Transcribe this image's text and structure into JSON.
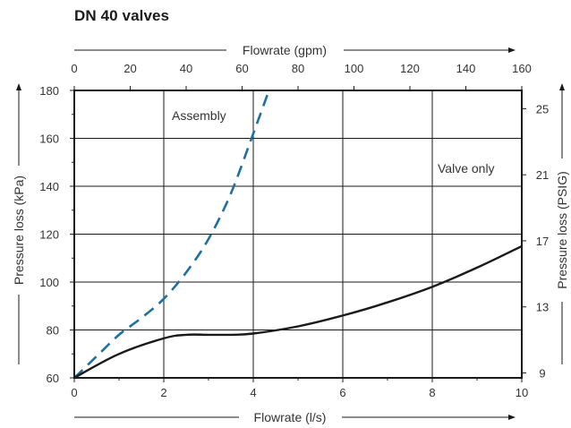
{
  "chart_data": {
    "type": "line",
    "title": "DN 40 valves",
    "x_bottom": {
      "label": "Flowrate (l/s)",
      "range": [
        0,
        10
      ],
      "ticks": [
        0,
        2,
        4,
        6,
        8,
        10
      ]
    },
    "x_top": {
      "label": "Flowrate (gpm)",
      "range": [
        0,
        160
      ],
      "ticks": [
        0,
        20,
        40,
        60,
        80,
        100,
        120,
        140,
        160
      ]
    },
    "y_left": {
      "label": "Pressure loss (kPa)",
      "range": [
        60,
        180
      ],
      "ticks": [
        60,
        80,
        100,
        120,
        140,
        160,
        180
      ]
    },
    "y_right": {
      "label": "Pressure loss (PSIG)",
      "ticks": [
        9,
        13,
        17,
        21,
        25
      ]
    },
    "grid": true,
    "series": [
      {
        "name": "Assembly",
        "style": "dashed",
        "color": "#1f6f9f",
        "x": [
          0,
          0.5,
          1,
          1.5,
          2,
          2.5,
          3,
          3.5,
          4,
          4.35
        ],
        "y": [
          60,
          69,
          78,
          85,
          93,
          104,
          118,
          137,
          162,
          180
        ]
      },
      {
        "name": "Valve only",
        "style": "solid",
        "color": "#1a1a1a",
        "x": [
          0,
          1,
          2,
          2.5,
          3,
          3.5,
          4,
          5,
          6,
          7,
          8,
          9,
          10
        ],
        "y": [
          60,
          70,
          76.5,
          78,
          78,
          78,
          78.5,
          81.5,
          86,
          91.5,
          98,
          106,
          115
        ]
      }
    ],
    "annotations": [
      "Assembly",
      "Valve only"
    ]
  }
}
